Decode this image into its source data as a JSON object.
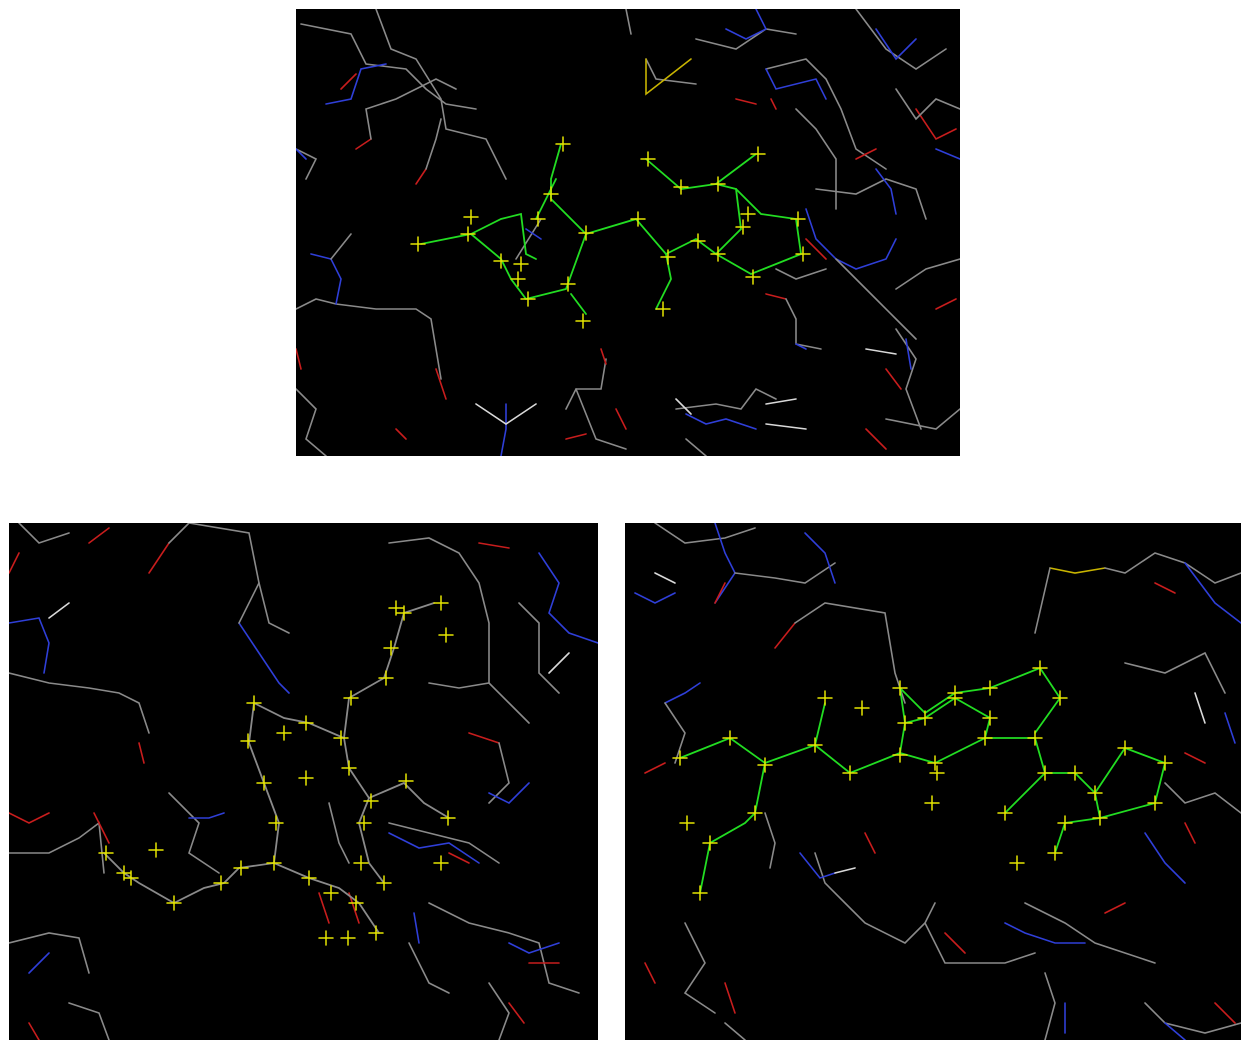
{
  "image": {
    "panels": [
      {
        "id": "top",
        "kind": "molecular-viewer"
      },
      {
        "id": "bottom-left",
        "kind": "molecular-viewer"
      },
      {
        "id": "bottom-right",
        "kind": "molecular-viewer"
      }
    ],
    "colors": {
      "background": "#000000",
      "page": "#ffffff",
      "carbon": "#8a8a8a",
      "nitrogen": "#2f3fd8",
      "oxygen": "#c81d1d",
      "sulfur": "#c8b400",
      "hydrogen": "#d9d9d9",
      "ligand_bond": "#22dd22",
      "ligand_marker": "#e6e600"
    }
  }
}
